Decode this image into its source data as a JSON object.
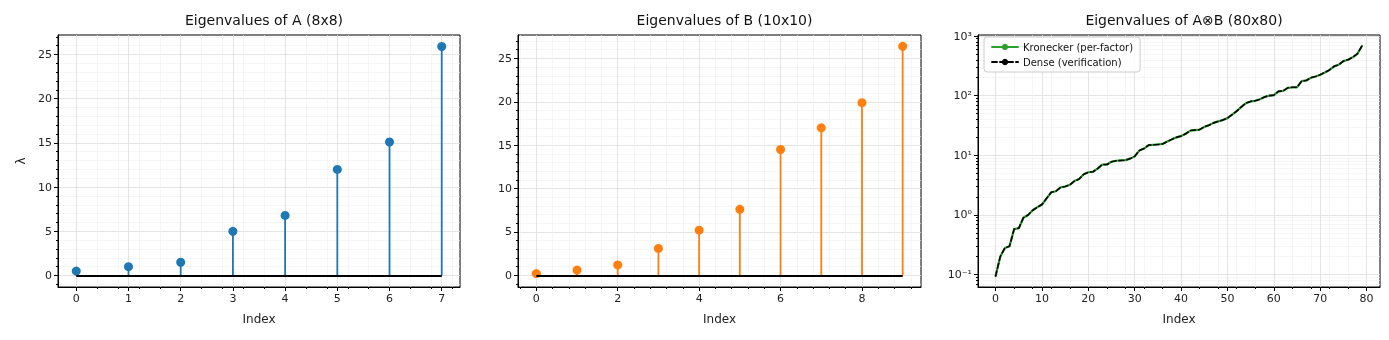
{
  "chart_data": [
    {
      "type": "lollipop",
      "title": "Eigenvalues of A (8x8)",
      "xlabel": "Index",
      "ylabel": "λ",
      "x": [
        0,
        1,
        2,
        3,
        4,
        5,
        6,
        7
      ],
      "series": [
        {
          "color": "#1f77b4",
          "values": [
            0.5,
            1.0,
            1.5,
            5.0,
            6.8,
            12.0,
            15.1,
            25.9
          ]
        }
      ],
      "xlim": [
        -0.35,
        7.35
      ],
      "xticks": [
        0,
        1,
        2,
        3,
        4,
        5,
        6,
        7
      ],
      "ylim": [
        -1.3,
        27.2
      ],
      "yticks": [
        0,
        5,
        10,
        15,
        20,
        25
      ],
      "ref_lines": [
        {
          "axis": "y",
          "value": 0,
          "color": "#000000"
        }
      ],
      "grid": true,
      "marker": "circle"
    },
    {
      "type": "lollipop",
      "title": "Eigenvalues of B (10x10)",
      "xlabel": "Index",
      "x": [
        0,
        1,
        2,
        3,
        4,
        5,
        6,
        7,
        8,
        9
      ],
      "series": [
        {
          "color": "#ff7f0e",
          "values": [
            0.2,
            0.6,
            1.2,
            3.1,
            5.2,
            7.6,
            14.5,
            17.0,
            19.9,
            26.4
          ]
        }
      ],
      "xlim": [
        -0.45,
        9.45
      ],
      "xticks": [
        0,
        2,
        4,
        6,
        8
      ],
      "ylim": [
        -1.35,
        27.7
      ],
      "yticks": [
        0,
        5,
        10,
        15,
        20,
        25
      ],
      "ref_lines": [
        {
          "axis": "y",
          "value": 0,
          "color": "#000000"
        }
      ],
      "grid": true,
      "marker": "circle"
    },
    {
      "type": "line",
      "title": "Eigenvalues of A⊗B (80x80)",
      "xlabel": "Index",
      "log": "y",
      "legend": "top left",
      "marker": "none",
      "grid": true,
      "x": [
        0,
        1,
        2,
        3,
        4,
        5,
        6,
        7,
        8,
        9,
        10,
        11,
        12,
        13,
        14,
        15,
        16,
        17,
        18,
        19,
        20,
        21,
        22,
        23,
        24,
        25,
        26,
        27,
        28,
        29,
        30,
        31,
        32,
        33,
        34,
        35,
        36,
        37,
        38,
        39,
        40,
        41,
        42,
        43,
        44,
        45,
        46,
        47,
        48,
        49,
        50,
        51,
        52,
        53,
        54,
        55,
        56,
        57,
        58,
        59,
        60,
        61,
        62,
        63,
        64,
        65,
        66,
        67,
        68,
        69,
        70,
        71,
        72,
        73,
        74,
        75,
        76,
        77,
        78,
        79
      ],
      "series": [
        {
          "name": "Kronecker (per-factor)",
          "color": "#2ca02c",
          "line_style": "solid",
          "values": [
            0.095,
            0.2,
            0.28,
            0.3,
            0.58,
            0.6,
            0.9,
            1.0,
            1.2,
            1.35,
            1.5,
            1.9,
            2.4,
            2.5,
            2.9,
            3.0,
            3.2,
            3.7,
            4.0,
            4.8,
            5.2,
            5.3,
            6.0,
            7.0,
            7.0,
            7.8,
            8.1,
            8.2,
            8.3,
            8.8,
            9.6,
            12,
            13,
            14.8,
            15,
            15.2,
            15.5,
            17,
            18.5,
            20,
            21,
            23,
            26,
            26.5,
            27,
            30,
            32,
            35,
            37,
            39,
            42,
            48,
            55,
            65,
            75,
            80,
            82,
            87,
            95,
            100,
            102,
            118,
            120,
            135,
            138,
            138,
            175,
            180,
            200,
            210,
            225,
            245,
            270,
            310,
            330,
            380,
            400,
            440,
            500,
            680
          ]
        },
        {
          "name": "Dense (verification)",
          "color": "#000000",
          "line_style": "dashed",
          "values": [
            0.095,
            0.2,
            0.28,
            0.3,
            0.58,
            0.6,
            0.9,
            1.0,
            1.2,
            1.35,
            1.5,
            1.9,
            2.4,
            2.5,
            2.9,
            3.0,
            3.2,
            3.7,
            4.0,
            4.8,
            5.2,
            5.3,
            6.0,
            7.0,
            7.0,
            7.8,
            8.1,
            8.2,
            8.3,
            8.8,
            9.6,
            12,
            13,
            14.8,
            15,
            15.2,
            15.5,
            17,
            18.5,
            20,
            21,
            23,
            26,
            26.5,
            27,
            30,
            32,
            35,
            37,
            39,
            42,
            48,
            55,
            65,
            75,
            80,
            82,
            87,
            95,
            100,
            102,
            118,
            120,
            135,
            138,
            138,
            175,
            180,
            200,
            210,
            225,
            245,
            270,
            310,
            330,
            380,
            400,
            440,
            500,
            680
          ]
        }
      ],
      "xlim": [
        -3.8,
        82.9
      ],
      "xticks": [
        0,
        10,
        20,
        30,
        40,
        50,
        60,
        70,
        80
      ],
      "ylim": [
        0.062,
        1040
      ],
      "yticks": [
        {
          "value": 0.1,
          "label": "10⁻¹"
        },
        {
          "value": 1,
          "label": "10⁰"
        },
        {
          "value": 10,
          "label": "10¹"
        },
        {
          "value": 100,
          "label": "10²"
        },
        {
          "value": 1000,
          "label": "10³"
        }
      ]
    }
  ]
}
